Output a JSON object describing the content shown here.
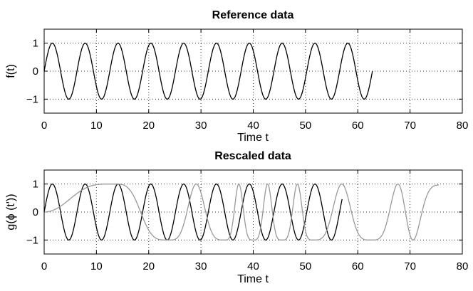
{
  "chart_data": [
    {
      "type": "line",
      "title": "Reference data",
      "xlabel": "Time t",
      "ylabel": "f(t)",
      "xlim": [
        0,
        80
      ],
      "ylim": [
        -1.5,
        1.5
      ],
      "xticks": [
        0,
        10,
        20,
        30,
        40,
        50,
        60,
        70,
        80
      ],
      "yticks": [
        -1,
        0,
        1
      ],
      "ytick_labels": [
        "−1",
        "0",
        "1"
      ],
      "grid": true,
      "legend": "none",
      "series": [
        {
          "kind": "sine",
          "amplitude": 1,
          "period": 6.28,
          "t_start": 0,
          "t_end": 62.8,
          "color": "#000000"
        }
      ]
    },
    {
      "type": "line",
      "title": "Rescaled data",
      "xlabel": "Time t",
      "ylabel": "g(ϕ (t'))",
      "xlim": [
        0,
        80
      ],
      "ylim": [
        -1.5,
        1.5
      ],
      "xticks": [
        0,
        10,
        20,
        30,
        40,
        50,
        60,
        70,
        80
      ],
      "yticks": [
        -1,
        0,
        1
      ],
      "ytick_labels": [
        "−1",
        "0",
        "1"
      ],
      "grid": true,
      "legend": "none",
      "series": [
        {
          "kind": "sine",
          "amplitude": 1,
          "period": 6.28,
          "t_start": 0,
          "t_end": 57,
          "color": "#000000"
        },
        {
          "kind": "warped",
          "amplitude": 1,
          "color": "#999999",
          "t_start": 0,
          "t_end": 75.5,
          "phase_knots": [
            [
              0,
              0
            ],
            [
              13.2,
              1.57
            ],
            [
              23.7,
              4.71
            ],
            [
              34.5,
              10.99
            ],
            [
              40,
              17.28
            ],
            [
              45.5,
              23.56
            ],
            [
              51.4,
              29.85
            ],
            [
              62.5,
              36.13
            ],
            [
              75.5,
              45.29
            ]
          ]
        }
      ]
    }
  ]
}
